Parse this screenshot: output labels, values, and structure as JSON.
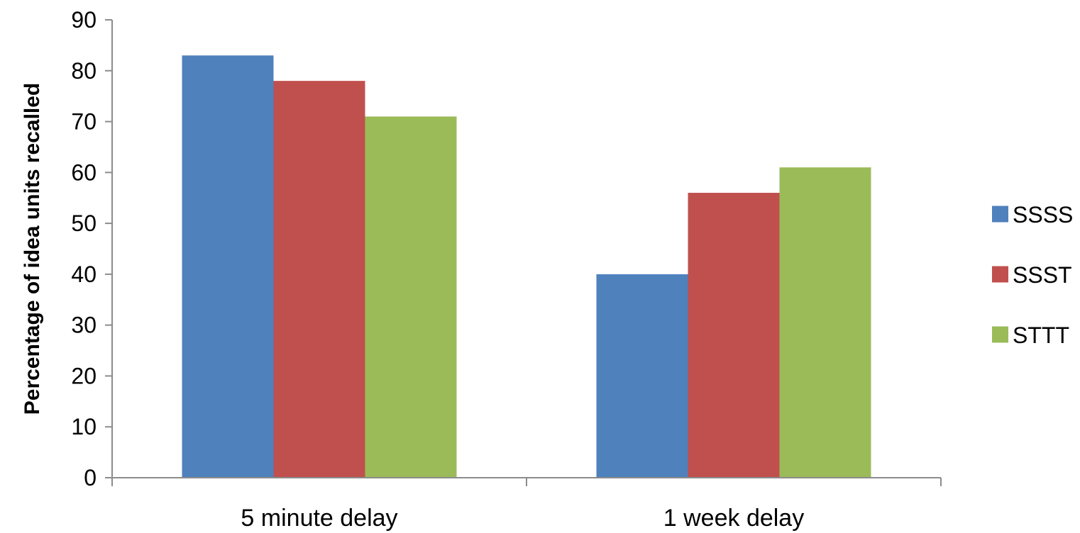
{
  "chart_data": {
    "type": "bar",
    "categories": [
      "5 minute delay",
      "1 week delay"
    ],
    "series": [
      {
        "name": "SSSS",
        "values": [
          83,
          40
        ],
        "color": "#4F81BD"
      },
      {
        "name": "SSST",
        "values": [
          78,
          56
        ],
        "color": "#C0504D"
      },
      {
        "name": "STTT",
        "values": [
          71,
          61
        ],
        "color": "#9BBB59"
      }
    ],
    "ylabel": "Percentage of idea units recalled",
    "xlabel": "",
    "ylim": [
      0,
      90
    ],
    "yticks": [
      "0",
      "10",
      "20",
      "30",
      "40",
      "50",
      "60",
      "70",
      "80",
      "90"
    ],
    "grid": false,
    "legend": "right"
  }
}
